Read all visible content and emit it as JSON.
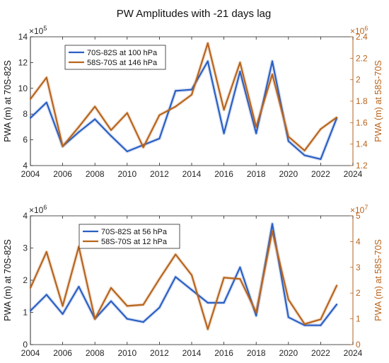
{
  "figure_title": "PW Amplitudes with -21 days lag",
  "colors": {
    "blue": "#2a5fc4",
    "orange": "#b8641c",
    "axis": "#262626"
  },
  "chart_data": [
    {
      "type": "line",
      "name": "top-chart",
      "xlabel": "",
      "xlim": [
        2004,
        2024
      ],
      "xticks": [
        2004,
        2006,
        2008,
        2010,
        2012,
        2014,
        2016,
        2018,
        2020,
        2022,
        2024
      ],
      "left_axis": {
        "label": "PWA (m) at 70S-82S",
        "multiplier": "×10",
        "exponent": "5",
        "ylim": [
          4,
          14
        ],
        "ticks": [
          4,
          6,
          8,
          10,
          12,
          14
        ],
        "tick_labels": [
          "4",
          "6",
          "8",
          "10",
          "12",
          "14"
        ]
      },
      "right_axis": {
        "label": "PWA (m) at 58S-70S",
        "multiplier": "×10",
        "exponent": "6",
        "ylim": [
          1.2,
          2.4
        ],
        "ticks": [
          1.2,
          1.4,
          1.6,
          1.8,
          2.0,
          2.2,
          2.4
        ],
        "tick_labels": [
          "1.2",
          "1.4",
          "1.6",
          "1.8",
          "2",
          "2.2",
          "2.4"
        ]
      },
      "legend_position": "top-left",
      "series": [
        {
          "name": "70S-82S at 100 hPa",
          "axis": "left",
          "color": "#2a5fc4",
          "x": [
            2004,
            2005,
            2006,
            2007,
            2008,
            2009,
            2010,
            2011,
            2012,
            2013,
            2014,
            2015,
            2016,
            2017,
            2018,
            2019,
            2020,
            2021,
            2022,
            2023
          ],
          "values": [
            7.7,
            8.9,
            5.5,
            6.6,
            7.6,
            6.3,
            5.1,
            5.6,
            6.1,
            9.8,
            9.9,
            12.1,
            6.5,
            11.3,
            6.5,
            12.1,
            5.9,
            4.8,
            4.5,
            7.7
          ]
        },
        {
          "name": "58S-70S at 146 hPa",
          "axis": "right",
          "color": "#b8641c",
          "x": [
            2004,
            2005,
            2006,
            2007,
            2008,
            2009,
            2010,
            2011,
            2012,
            2013,
            2014,
            2015,
            2016,
            2017,
            2018,
            2019,
            2020,
            2021,
            2022,
            2023
          ],
          "values": [
            1.82,
            2.02,
            1.38,
            1.56,
            1.75,
            1.53,
            1.69,
            1.37,
            1.67,
            1.75,
            1.86,
            2.34,
            1.72,
            2.16,
            1.56,
            2.05,
            1.47,
            1.34,
            1.54,
            1.65
          ]
        }
      ]
    },
    {
      "type": "line",
      "name": "bottom-chart",
      "xlabel": "",
      "xlim": [
        2004,
        2024
      ],
      "xticks": [
        2004,
        2006,
        2008,
        2010,
        2012,
        2014,
        2016,
        2018,
        2020,
        2022,
        2024
      ],
      "left_axis": {
        "label": "PWA (m) at 70S-82S",
        "multiplier": "×10",
        "exponent": "6",
        "ylim": [
          0,
          4
        ],
        "ticks": [
          0,
          1,
          2,
          3,
          4
        ],
        "tick_labels": [
          "0",
          "1",
          "2",
          "3",
          "4"
        ]
      },
      "right_axis": {
        "label": "PWA (m) at 58S-70S",
        "multiplier": "×10",
        "exponent": "7",
        "ylim": [
          0,
          5
        ],
        "ticks": [
          0,
          1,
          2,
          3,
          4,
          5
        ],
        "tick_labels": [
          "0",
          "1",
          "2",
          "3",
          "4",
          "5"
        ]
      },
      "legend_position": "top-left",
      "series": [
        {
          "name": "70S-82S at 56 hPa",
          "axis": "left",
          "color": "#2a5fc4",
          "x": [
            2004,
            2005,
            2006,
            2007,
            2008,
            2009,
            2010,
            2011,
            2012,
            2013,
            2014,
            2015,
            2016,
            2017,
            2018,
            2019,
            2020,
            2021,
            2022,
            2023
          ],
          "values": [
            1.05,
            1.55,
            0.95,
            1.8,
            0.8,
            1.35,
            0.8,
            0.7,
            1.15,
            2.1,
            1.7,
            1.3,
            1.3,
            2.4,
            0.9,
            3.75,
            0.85,
            0.6,
            0.6,
            1.25
          ]
        },
        {
          "name": "58S-70S at 12 hPa",
          "axis": "right",
          "color": "#b8641c",
          "x": [
            2004,
            2005,
            2006,
            2007,
            2008,
            2009,
            2010,
            2011,
            2012,
            2013,
            2014,
            2015,
            2016,
            2017,
            2018,
            2019,
            2020,
            2021,
            2022,
            2023
          ],
          "values": [
            2.2,
            3.6,
            1.5,
            3.8,
            1.0,
            2.2,
            1.5,
            1.55,
            2.55,
            3.5,
            2.7,
            0.6,
            2.6,
            2.55,
            1.25,
            4.4,
            1.75,
            0.8,
            0.98,
            2.3
          ]
        }
      ]
    }
  ]
}
